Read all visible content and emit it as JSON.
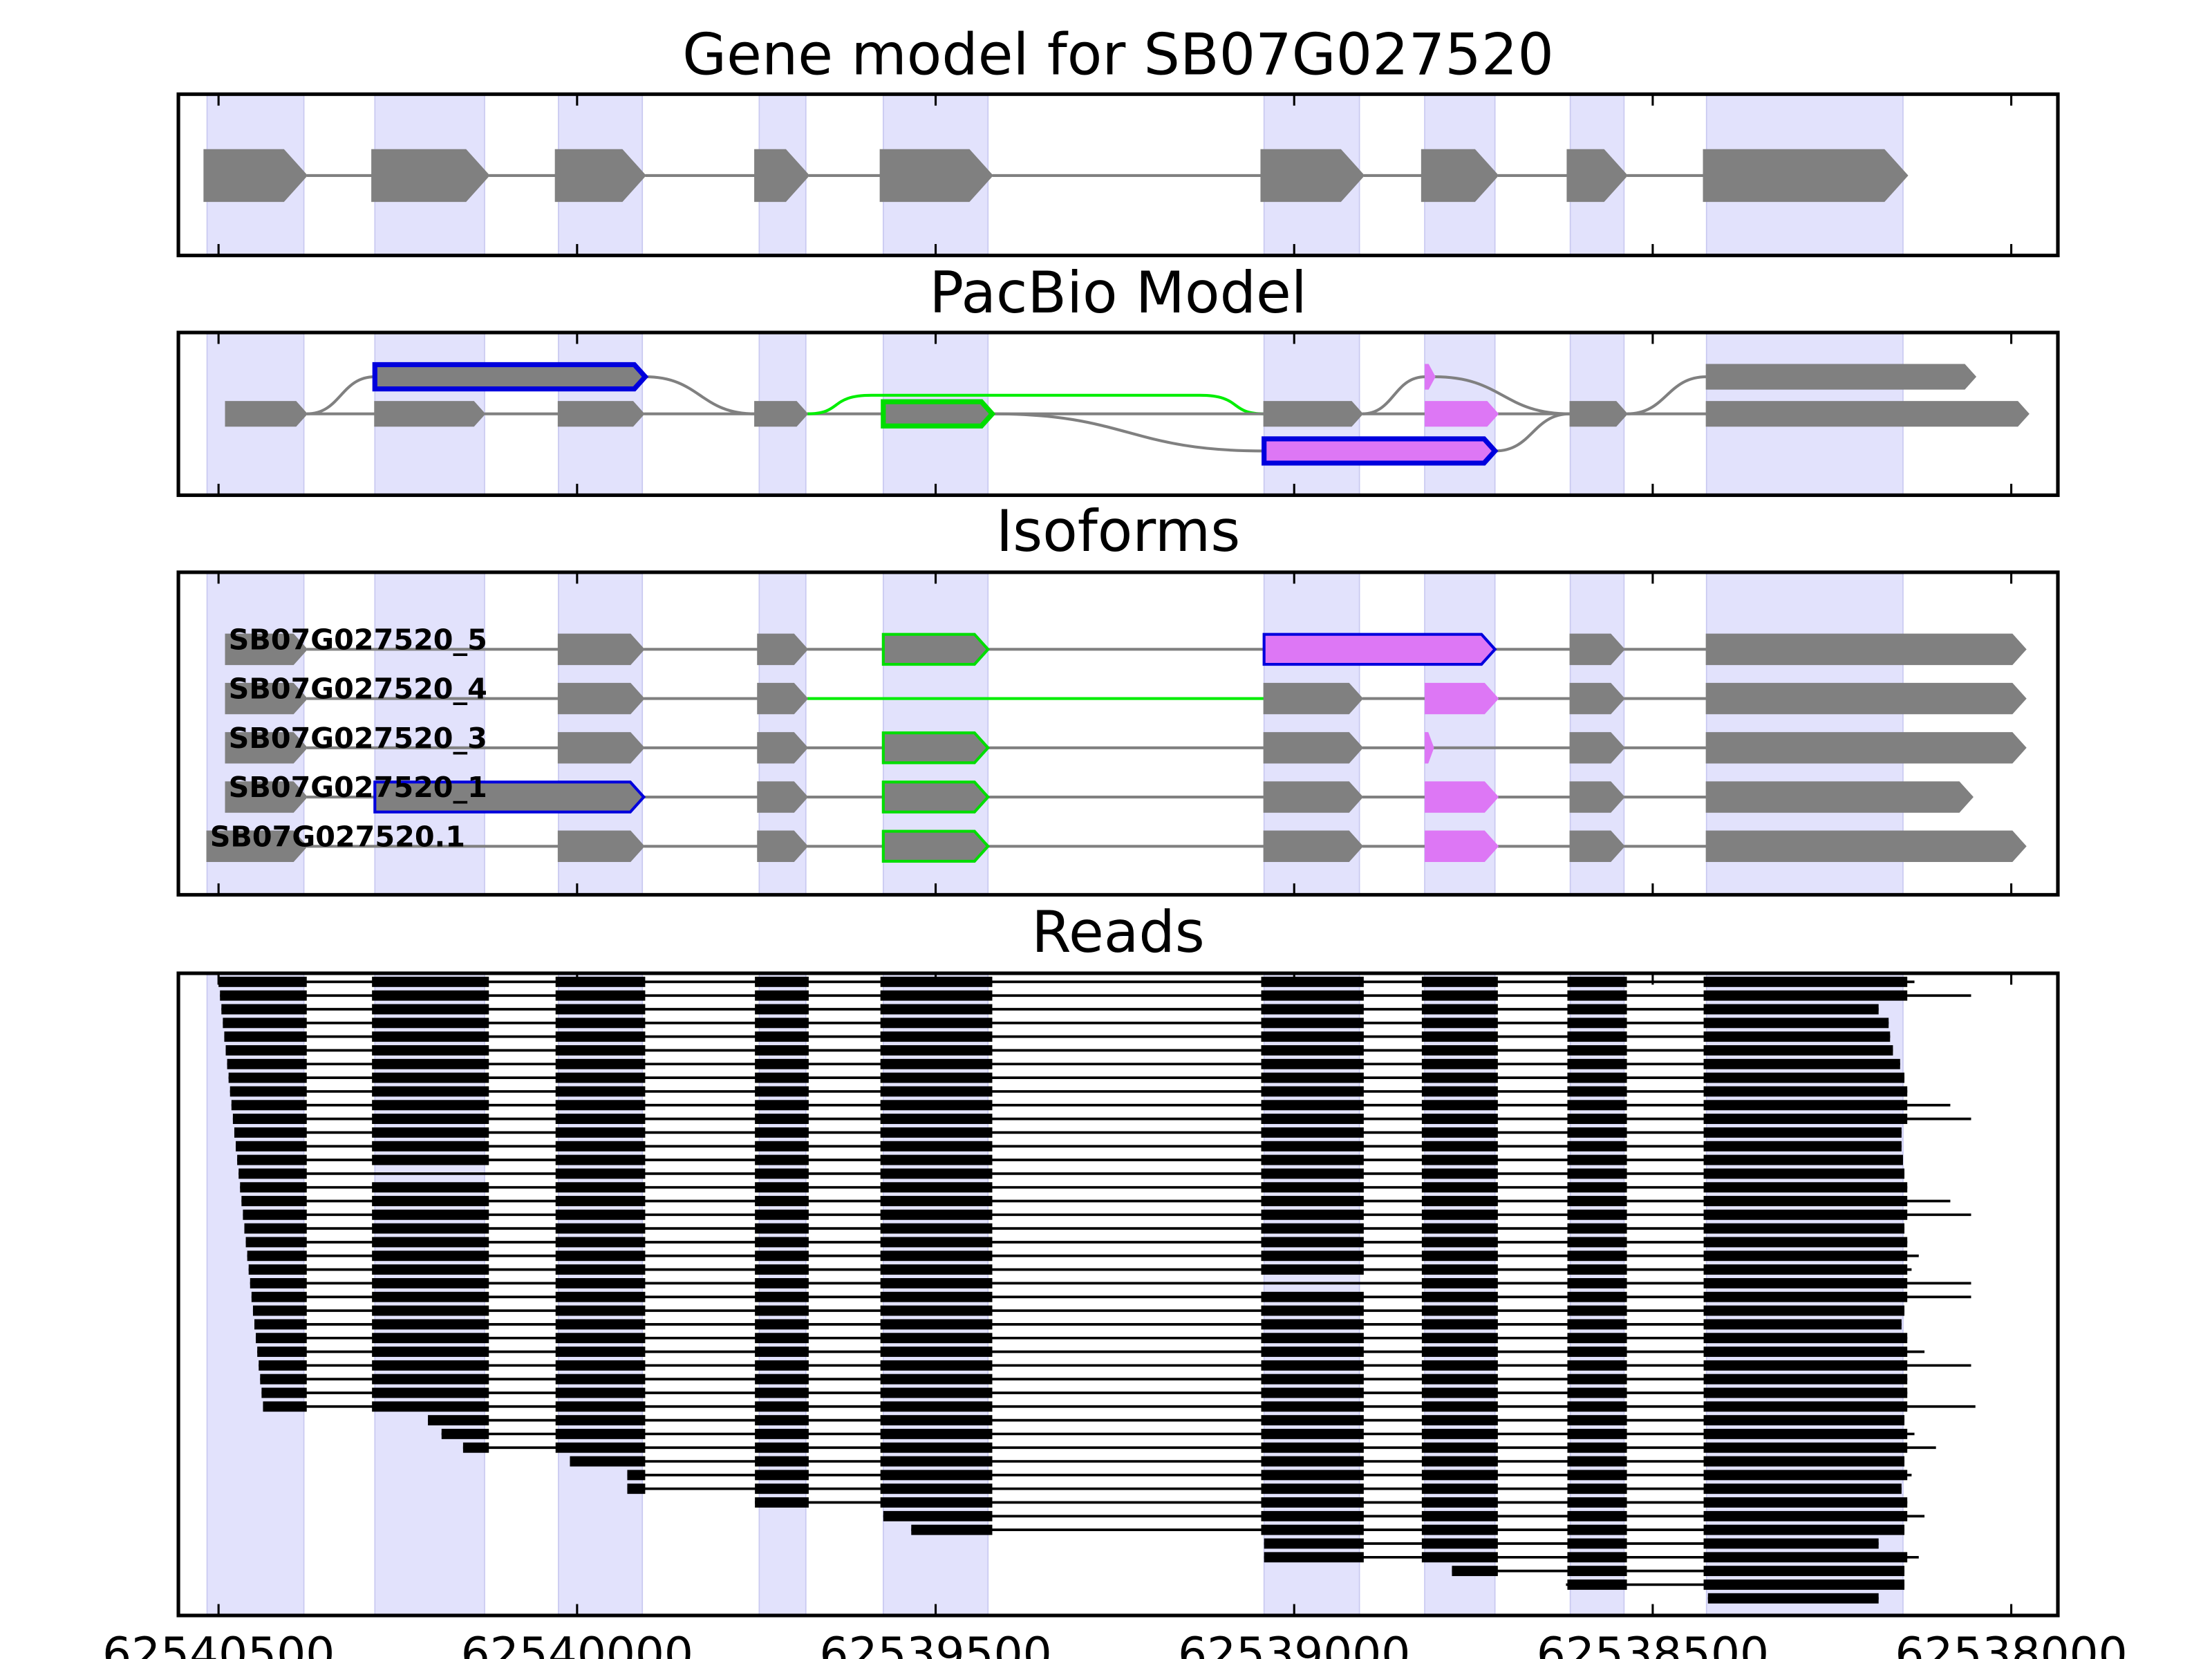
{
  "chart_data": {
    "type": "genome",
    "xlim": [
      62540556,
      62537935
    ],
    "xticks": [
      62540500,
      62540000,
      62539500,
      62539000,
      62538500,
      62538000
    ],
    "shade_color": "#e2e2fc",
    "shaded": [
      {
        "start": 62540516,
        "end": 62540381
      },
      {
        "start": 62540282,
        "end": 62540129
      },
      {
        "start": 62540026,
        "end": 62539909
      },
      {
        "start": 62539746,
        "end": 62539681
      },
      {
        "start": 62539573,
        "end": 62539427
      },
      {
        "start": 62539042,
        "end": 62538909
      },
      {
        "start": 62538818,
        "end": 62538720
      },
      {
        "start": 62538615,
        "end": 62538540
      },
      {
        "start": 62538425,
        "end": 62538151
      }
    ],
    "panels": [
      {
        "type": "track",
        "title": "Gene model for SB07G027520",
        "color": "#808080",
        "exons": [
          {
            "start": 62540520,
            "end": 62540377
          },
          {
            "start": 62540286,
            "end": 62540123
          },
          {
            "start": 62540030,
            "end": 62539905
          },
          {
            "start": 62539752,
            "end": 62539677
          },
          {
            "start": 62539577,
            "end": 62539421
          },
          {
            "start": 62539046,
            "end": 62538903
          },
          {
            "start": 62538822,
            "end": 62538716
          },
          {
            "start": 62538619,
            "end": 62538536
          },
          {
            "start": 62538429,
            "end": 62538145
          }
        ]
      },
      {
        "type": "graph",
        "title": "PacBio Model",
        "line_color": "#808080",
        "exons": [
          {
            "start": 62540490,
            "end": 62540377,
            "row": 1,
            "fill": "#808080"
          },
          {
            "start": 62540282,
            "end": 62539905,
            "row": 0,
            "fill": "#808080",
            "edge": "#0000dd"
          },
          {
            "start": 62540282,
            "end": 62540129,
            "row": 1,
            "fill": "#808080"
          },
          {
            "start": 62540026,
            "end": 62539907,
            "row": 1,
            "fill": "#808080"
          },
          {
            "start": 62539752,
            "end": 62539679,
            "row": 1,
            "fill": "#808080"
          },
          {
            "start": 62539573,
            "end": 62539421,
            "row": 1,
            "fill": "#808080",
            "edge": "#00dd00"
          },
          {
            "start": 62539042,
            "end": 62538905,
            "row": 1,
            "fill": "#808080"
          },
          {
            "start": 62539042,
            "end": 62538720,
            "row": 2,
            "fill": "#dd77f5",
            "edge": "#0000dd"
          },
          {
            "start": 62538817,
            "end": 62538804,
            "row": 0,
            "fill": "#dd77f5"
          },
          {
            "start": 62538817,
            "end": 62538716,
            "row": 1,
            "fill": "#dd77f5"
          },
          {
            "start": 62538615,
            "end": 62538536,
            "row": 1,
            "fill": "#808080"
          },
          {
            "start": 62538425,
            "end": 62538050,
            "row": 0,
            "fill": "#808080"
          },
          {
            "start": 62538425,
            "end": 62537976,
            "row": 1,
            "fill": "#808080"
          }
        ],
        "edges": [
          {
            "from": 0,
            "to": 1
          },
          {
            "from": 0,
            "to": 2
          },
          {
            "from": 1,
            "to": 4
          },
          {
            "from": 2,
            "to": 3
          },
          {
            "from": 3,
            "to": 4
          },
          {
            "from": 4,
            "to": 5
          },
          {
            "from": 4,
            "to": 6,
            "color": "#00ee00"
          },
          {
            "from": 5,
            "to": 6
          },
          {
            "from": 5,
            "to": 7
          },
          {
            "from": 6,
            "to": 8
          },
          {
            "from": 6,
            "to": 9
          },
          {
            "from": 8,
            "to": 10
          },
          {
            "from": 7,
            "to": 10
          },
          {
            "from": 9,
            "to": 10
          },
          {
            "from": 10,
            "to": 11
          },
          {
            "from": 10,
            "to": 12
          }
        ]
      },
      {
        "type": "isoforms",
        "title": "Isoforms",
        "line_color": "#808080",
        "isoforms": [
          {
            "name": "SB07G027520_5",
            "exons": [
              {
                "start": 62540490,
                "end": 62540377,
                "fill": "#808080"
              },
              {
                "start": 62540026,
                "end": 62539907,
                "fill": "#808080"
              },
              {
                "start": 62539748,
                "end": 62539679,
                "fill": "#808080"
              },
              {
                "start": 62539573,
                "end": 62539427,
                "fill": "#808080",
                "edge": "#00dd00"
              },
              {
                "start": 62539042,
                "end": 62538720,
                "fill": "#dd77f5",
                "edge": "#0000dd"
              },
              {
                "start": 62538615,
                "end": 62538540,
                "fill": "#808080"
              },
              {
                "start": 62538425,
                "end": 62537980,
                "fill": "#808080"
              }
            ]
          },
          {
            "name": "SB07G027520_4",
            "exons": [
              {
                "start": 62540490,
                "end": 62540377,
                "fill": "#808080"
              },
              {
                "start": 62540026,
                "end": 62539907,
                "fill": "#808080"
              },
              {
                "start": 62539748,
                "end": 62539679,
                "fill": "#808080",
                "intron": "#00ee00"
              },
              {
                "start": 62539042,
                "end": 62538905,
                "fill": "#808080"
              },
              {
                "start": 62538817,
                "end": 62538716,
                "fill": "#dd77f5"
              },
              {
                "start": 62538615,
                "end": 62538540,
                "fill": "#808080"
              },
              {
                "start": 62538425,
                "end": 62537980,
                "fill": "#808080"
              }
            ]
          },
          {
            "name": "SB07G027520_3",
            "exons": [
              {
                "start": 62540490,
                "end": 62540377,
                "fill": "#808080"
              },
              {
                "start": 62540026,
                "end": 62539907,
                "fill": "#808080"
              },
              {
                "start": 62539748,
                "end": 62539679,
                "fill": "#808080"
              },
              {
                "start": 62539573,
                "end": 62539427,
                "fill": "#808080",
                "edge": "#00dd00"
              },
              {
                "start": 62539042,
                "end": 62538905,
                "fill": "#808080"
              },
              {
                "start": 62538817,
                "end": 62538806,
                "fill": "#dd77f5"
              },
              {
                "start": 62538615,
                "end": 62538540,
                "fill": "#808080"
              },
              {
                "start": 62538425,
                "end": 62537980,
                "fill": "#808080"
              }
            ]
          },
          {
            "name": "SB07G027520_1",
            "exons": [
              {
                "start": 62540490,
                "end": 62540377,
                "fill": "#808080"
              },
              {
                "start": 62540282,
                "end": 62539907,
                "fill": "#808080",
                "edge": "#0000dd"
              },
              {
                "start": 62539748,
                "end": 62539679,
                "fill": "#808080"
              },
              {
                "start": 62539573,
                "end": 62539427,
                "fill": "#808080",
                "edge": "#00dd00"
              },
              {
                "start": 62539042,
                "end": 62538905,
                "fill": "#808080"
              },
              {
                "start": 62538817,
                "end": 62538716,
                "fill": "#dd77f5"
              },
              {
                "start": 62538615,
                "end": 62538540,
                "fill": "#808080"
              },
              {
                "start": 62538425,
                "end": 62538054,
                "fill": "#808080"
              }
            ]
          },
          {
            "name": "SB07G027520.1",
            "exons": [
              {
                "start": 62540516,
                "end": 62540377,
                "fill": "#808080"
              },
              {
                "start": 62540026,
                "end": 62539907,
                "fill": "#808080"
              },
              {
                "start": 62539748,
                "end": 62539679,
                "fill": "#808080"
              },
              {
                "start": 62539573,
                "end": 62539427,
                "fill": "#808080",
                "edge": "#00dd00"
              },
              {
                "start": 62539042,
                "end": 62538905,
                "fill": "#808080"
              },
              {
                "start": 62538817,
                "end": 62538716,
                "fill": "#dd77f5"
              },
              {
                "start": 62538615,
                "end": 62538540,
                "fill": "#808080"
              },
              {
                "start": 62538425,
                "end": 62537980,
                "fill": "#808080"
              }
            ]
          }
        ]
      },
      {
        "type": "reads",
        "title": "Reads",
        "color": "#000000",
        "reads": [
          {
            "start": 62540500,
            "end": 62538135
          },
          {
            "start": 62540498,
            "end": 62538056
          },
          {
            "start": 62540496,
            "end": 62538185
          },
          {
            "start": 62540494,
            "end": 62538171
          },
          {
            "start": 62540492,
            "end": 62538169
          },
          {
            "start": 62540490,
            "end": 62538165
          },
          {
            "start": 62540488,
            "end": 62538155
          },
          {
            "start": 62540486,
            "end": 62538149
          },
          {
            "start": 62540484,
            "end": 62538145
          },
          {
            "start": 62540482,
            "end": 62538085
          },
          {
            "start": 62540480,
            "end": 62538056
          },
          {
            "start": 62540478,
            "end": 62538153
          },
          {
            "start": 62540476,
            "end": 62538153
          },
          {
            "start": 62540474,
            "end": 62538151
          },
          {
            "start": 62540472,
            "end": 62538149,
            "skip": [
              1
            ]
          },
          {
            "start": 62540470,
            "end": 62538145
          },
          {
            "start": 62540468,
            "end": 62538085
          },
          {
            "start": 62540466,
            "end": 62538056
          },
          {
            "start": 62540464,
            "end": 62538149
          },
          {
            "start": 62540462,
            "end": 62538145
          },
          {
            "start": 62540460,
            "end": 62538129
          },
          {
            "start": 62540458,
            "end": 62538139
          },
          {
            "start": 62540456,
            "end": 62538056,
            "skip": [
              5
            ]
          },
          {
            "start": 62540454,
            "end": 62538056
          },
          {
            "start": 62540452,
            "end": 62538149
          },
          {
            "start": 62540450,
            "end": 62538153
          },
          {
            "start": 62540448,
            "end": 62538145
          },
          {
            "start": 62540446,
            "end": 62538121
          },
          {
            "start": 62540444,
            "end": 62538056
          },
          {
            "start": 62540442,
            "end": 62538145
          },
          {
            "start": 62540440,
            "end": 62538145
          },
          {
            "start": 62540438,
            "end": 62538050
          },
          {
            "start": 62540208,
            "end": 62538149
          },
          {
            "start": 62540189,
            "end": 62538135
          },
          {
            "start": 62540159,
            "end": 62538105
          },
          {
            "start": 62540010,
            "end": 62538149
          },
          {
            "start": 62539930,
            "end": 62538139
          },
          {
            "start": 62539930,
            "end": 62538153
          },
          {
            "start": 62539752,
            "end": 62538145
          },
          {
            "start": 62539573,
            "end": 62538121
          },
          {
            "start": 62539534,
            "end": 62538149
          },
          {
            "start": 62539042,
            "end": 62538185
          },
          {
            "start": 62539042,
            "end": 62538129
          },
          {
            "start": 62538780,
            "end": 62538149
          },
          {
            "start": 62538621,
            "end": 62538149
          },
          {
            "start": 62538423,
            "end": 62538185
          }
        ]
      }
    ]
  }
}
